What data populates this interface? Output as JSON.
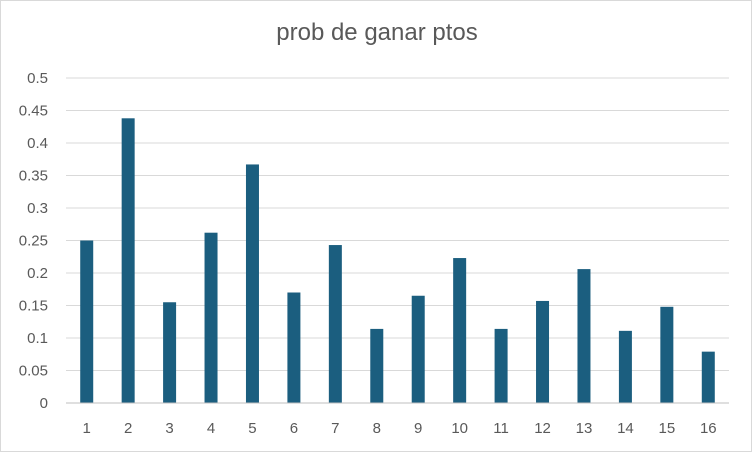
{
  "chart_data": {
    "type": "bar",
    "title": "prob de ganar ptos",
    "xlabel": "",
    "ylabel": "",
    "categories": [
      "1",
      "2",
      "3",
      "4",
      "5",
      "6",
      "7",
      "8",
      "9",
      "10",
      "11",
      "12",
      "13",
      "14",
      "15",
      "16"
    ],
    "values": [
      0.25,
      0.438,
      0.155,
      0.262,
      0.367,
      0.17,
      0.243,
      0.114,
      0.165,
      0.223,
      0.114,
      0.157,
      0.206,
      0.111,
      0.148,
      0.079
    ],
    "ylim": [
      0,
      0.5
    ],
    "yticks": [
      "0",
      "0.05",
      "0.1",
      "0.15",
      "0.2",
      "0.25",
      "0.3",
      "0.35",
      "0.4",
      "0.45",
      "0.5"
    ],
    "grid": true,
    "legend": "none",
    "bar_color": "#1b5e7f",
    "grid_color": "#d9d9d9",
    "axis_color": "#bfbfbf"
  }
}
